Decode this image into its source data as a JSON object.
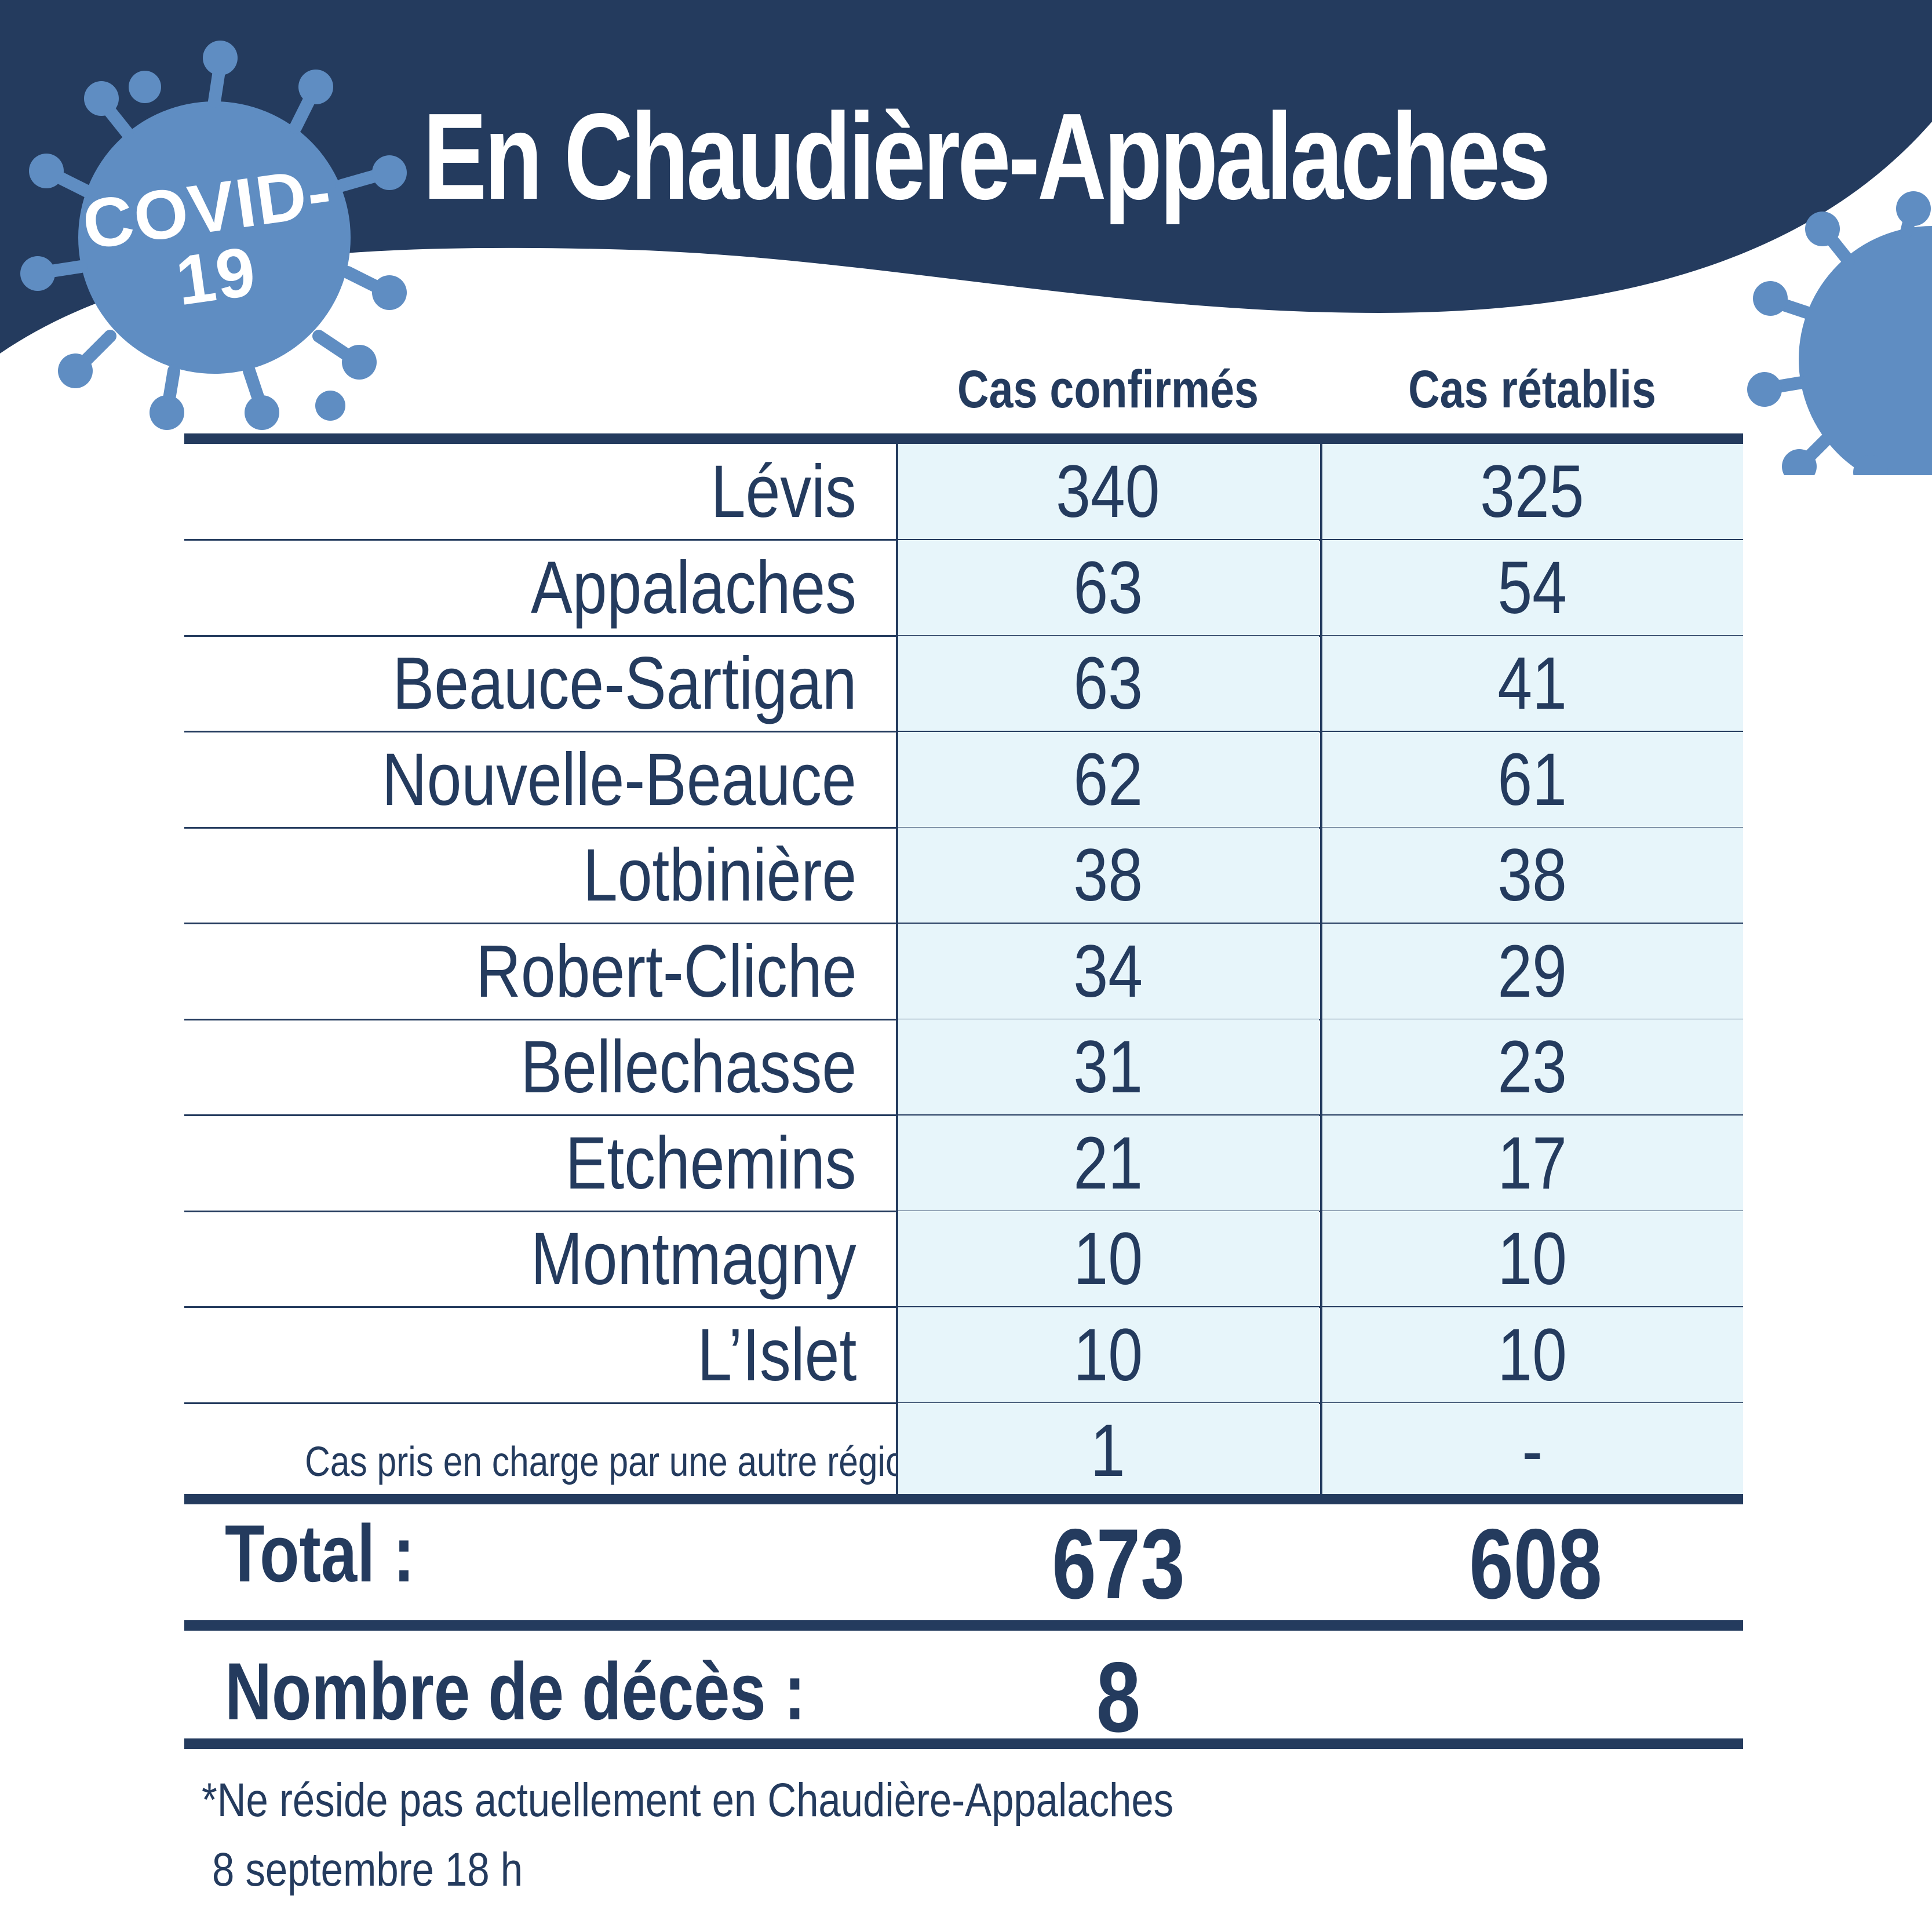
{
  "header": {
    "title": "En Chaudière-Appalaches",
    "badge_line1": "COVID-",
    "badge_line2": "19"
  },
  "table": {
    "col_confirmed": "Cas confirmés",
    "col_recovered": "Cas rétablis",
    "rows": [
      {
        "name": "Lévis",
        "confirmed": "340",
        "recovered": "325"
      },
      {
        "name": "Appalaches",
        "confirmed": "63",
        "recovered": "54"
      },
      {
        "name": "Beauce-Sartigan",
        "confirmed": "63",
        "recovered": "41"
      },
      {
        "name": "Nouvelle-Beauce",
        "confirmed": "62",
        "recovered": "61"
      },
      {
        "name": "Lotbinière",
        "confirmed": "38",
        "recovered": "38"
      },
      {
        "name": "Robert-Cliche",
        "confirmed": "34",
        "recovered": "29"
      },
      {
        "name": "Bellechasse",
        "confirmed": "31",
        "recovered": "23"
      },
      {
        "name": "Etchemins",
        "confirmed": "21",
        "recovered": "17"
      },
      {
        "name": "Montmagny",
        "confirmed": "10",
        "recovered": "10"
      },
      {
        "name": "L’Islet",
        "confirmed": "10",
        "recovered": "10"
      },
      {
        "name": "Cas pris en charge par une autre région*",
        "confirmed": "1",
        "recovered": "-"
      }
    ]
  },
  "totals": {
    "label": "Total :",
    "confirmed": "673",
    "recovered": "608"
  },
  "deaths": {
    "label": "Nombre de décès :",
    "value": "8"
  },
  "footnotes": {
    "note": "*Ne réside pas actuellement en Chaudière-Appalaches",
    "date": "8 septembre 18 h"
  },
  "colors": {
    "navy": "#243b5e",
    "virus_blue": "#5f8dc2",
    "cell_bg": "#e7f5fa"
  }
}
